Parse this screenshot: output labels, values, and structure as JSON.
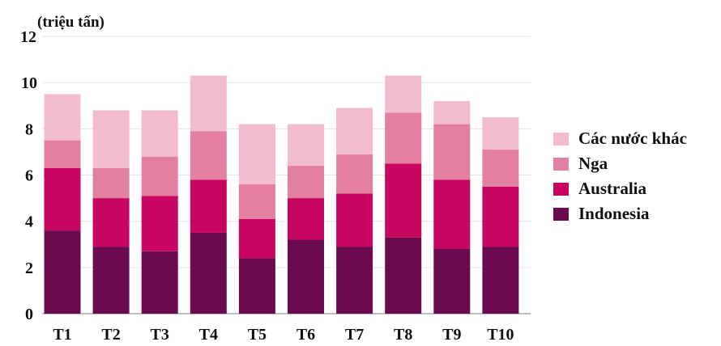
{
  "chart_data": {
    "type": "bar",
    "stacked": true,
    "ylabel": "(triệu tấn)",
    "ylim": [
      0,
      12
    ],
    "yticks": [
      "0",
      "2",
      "4",
      "6",
      "8",
      "10",
      "12"
    ],
    "categories": [
      "T1",
      "T2",
      "T3",
      "T4",
      "T5",
      "T6",
      "T7",
      "T8",
      "T9",
      "T10"
    ],
    "series": [
      {
        "name": "Indonesia",
        "color": "#6b0a4e",
        "values": [
          3.6,
          2.9,
          2.7,
          3.5,
          2.4,
          3.2,
          2.9,
          3.3,
          2.8,
          2.9
        ]
      },
      {
        "name": "Australia",
        "color": "#c8065f",
        "values": [
          2.7,
          2.1,
          2.4,
          2.3,
          1.7,
          1.8,
          2.3,
          3.2,
          3.0,
          2.6
        ]
      },
      {
        "name": "Nga",
        "color": "#e37fa1",
        "values": [
          1.2,
          1.3,
          1.7,
          2.1,
          1.5,
          1.4,
          1.7,
          2.2,
          2.4,
          1.6
        ]
      },
      {
        "name": "Các nước khác",
        "color": "#f2bcce",
        "values": [
          2.0,
          2.5,
          2.0,
          2.4,
          2.6,
          1.8,
          2.0,
          1.6,
          1.0,
          1.4
        ]
      }
    ],
    "legend_position": "right",
    "grid": true
  }
}
